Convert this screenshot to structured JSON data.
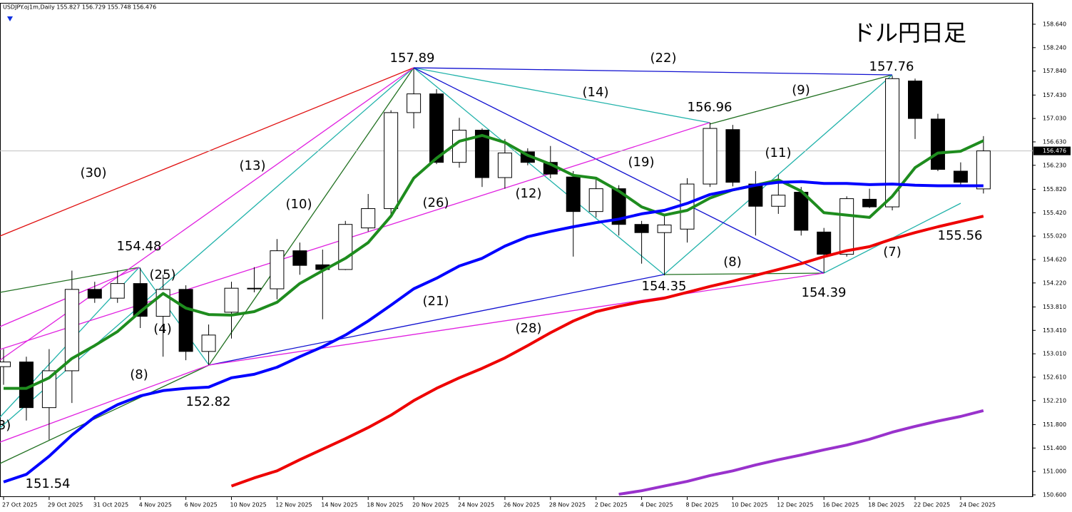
{
  "chart_data": {
    "type": "candlestick",
    "header": "USDJPY.oj1m,Daily 155.827 156.729 155.748 156.476",
    "title": "ドル円日足",
    "categories": [
      "27 Oct 2025",
      null,
      "29 Oct 2025",
      null,
      "31 Oct 2025",
      null,
      "4 Nov 2025",
      null,
      "6 Nov 2025",
      null,
      "10 Nov 2025",
      null,
      "12 Nov 2025",
      null,
      "14 Nov 2025",
      null,
      "18 Nov 2025",
      null,
      "20 Nov 2025",
      null,
      "24 Nov 2025",
      null,
      "26 Nov 2025",
      null,
      "28 Nov 2025",
      null,
      "2 Dec 2025",
      null,
      "4 Dec 2025",
      null,
      "8 Dec 2025",
      null,
      "10 Dec 2025",
      null,
      "12 Dec 2025",
      null,
      "16 Dec 2025",
      null,
      "18 Dec 2025",
      null,
      "22 Dec 2025",
      null,
      "24 Dec 2025",
      null
    ],
    "open": [
      152.79,
      152.87,
      152.09,
      152.72,
      154.11,
      153.96,
      154.21,
      153.65,
      154.11,
      153.05,
      153.72,
      154.13,
      154.12,
      154.77,
      154.53,
      154.45,
      155.16,
      155.49,
      157.13,
      157.45,
      156.28,
      156.83,
      156.02,
      156.46,
      156.28,
      156.03,
      155.44,
      155.83,
      155.22,
      155.08,
      155.14,
      155.91,
      156.84,
      155.91,
      155.53,
      155.77,
      155.09,
      154.71,
      155.65,
      155.52,
      157.67,
      157.02,
      156.13,
      155.827
    ],
    "high": [
      153.09,
      152.96,
      153.09,
      154.43,
      154.24,
      154.43,
      154.48,
      154.36,
      154.18,
      153.51,
      154.24,
      154.49,
      154.97,
      154.91,
      154.79,
      155.28,
      155.74,
      157.17,
      157.89,
      157.53,
      157.04,
      156.86,
      156.68,
      156.52,
      156.56,
      156.13,
      156.01,
      155.89,
      155.28,
      155.4,
      156.01,
      156.96,
      156.92,
      156.13,
      156.07,
      155.86,
      155.16,
      155.7,
      155.83,
      157.76,
      157.71,
      157.11,
      156.28,
      156.729
    ],
    "low": [
      152.48,
      151.87,
      151.54,
      152.17,
      153.88,
      153.88,
      153.45,
      152.96,
      152.9,
      152.82,
      153.27,
      154.06,
      153.94,
      154.36,
      153.6,
      154.44,
      155.1,
      155.4,
      156.86,
      156.25,
      156.19,
      155.86,
      155.83,
      156.23,
      156.01,
      154.67,
      155.34,
      155.03,
      154.55,
      154.35,
      154.91,
      155.86,
      155.87,
      155.03,
      155.4,
      155.03,
      154.39,
      154.67,
      155.5,
      155.46,
      156.68,
      156.13,
      155.86,
      155.748
    ],
    "close": [
      152.87,
      152.09,
      152.72,
      154.11,
      153.96,
      154.21,
      153.65,
      154.11,
      153.05,
      153.33,
      154.13,
      154.12,
      154.77,
      154.52,
      154.45,
      155.22,
      155.49,
      157.13,
      157.45,
      156.28,
      156.83,
      156.02,
      156.44,
      156.28,
      156.08,
      155.44,
      155.83,
      155.22,
      155.08,
      155.21,
      155.91,
      156.86,
      155.94,
      155.53,
      155.72,
      155.12,
      154.71,
      155.66,
      155.52,
      157.71,
      157.03,
      156.16,
      155.94,
      156.476
    ],
    "up_color": "#ffffff",
    "down_color": "#000000",
    "series": [
      {
        "color": "#1e8c1e",
        "values": [
          152.42,
          152.42,
          152.6,
          152.93,
          153.15,
          153.39,
          153.73,
          154.04,
          153.79,
          153.68,
          153.67,
          153.73,
          153.89,
          154.21,
          154.43,
          154.64,
          154.91,
          155.36,
          156.01,
          156.35,
          156.64,
          156.74,
          156.62,
          156.4,
          156.25,
          156.06,
          156.01,
          155.79,
          155.52,
          155.38,
          155.46,
          155.67,
          155.81,
          155.89,
          155.98,
          155.79,
          155.42,
          155.38,
          155.34,
          155.7,
          156.19,
          156.44,
          156.47,
          156.65
        ]
      },
      {
        "color": "#0000ff",
        "values": [
          150.82,
          150.95,
          151.26,
          151.62,
          151.93,
          152.14,
          152.29,
          152.38,
          152.42,
          152.44,
          152.6,
          152.66,
          152.78,
          152.96,
          153.13,
          153.33,
          153.57,
          153.84,
          154.12,
          154.3,
          154.51,
          154.64,
          154.85,
          155.01,
          155.1,
          155.18,
          155.25,
          155.31,
          155.4,
          155.46,
          155.58,
          155.73,
          155.81,
          155.89,
          155.94,
          155.95,
          155.92,
          155.92,
          155.9,
          155.91,
          155.89,
          155.88,
          155.88,
          155.88
        ]
      },
      {
        "color": "#ee0000",
        "values": [
          null,
          null,
          null,
          null,
          null,
          null,
          null,
          null,
          null,
          null,
          150.75,
          150.89,
          151.01,
          151.2,
          151.38,
          151.56,
          151.75,
          151.96,
          152.21,
          152.42,
          152.6,
          152.76,
          152.94,
          153.15,
          153.37,
          153.57,
          153.73,
          153.82,
          153.9,
          153.96,
          154.06,
          154.16,
          154.25,
          154.35,
          154.45,
          154.55,
          154.67,
          154.77,
          154.84,
          154.97,
          155.08,
          155.18,
          155.27,
          155.36
        ]
      },
      {
        "color": "#9932cc",
        "values": [
          null,
          null,
          null,
          null,
          null,
          null,
          null,
          null,
          null,
          null,
          null,
          null,
          null,
          null,
          null,
          null,
          null,
          null,
          null,
          null,
          null,
          null,
          null,
          null,
          null,
          null,
          null,
          150.61,
          150.67,
          150.75,
          150.83,
          150.93,
          151.01,
          151.11,
          151.2,
          151.28,
          151.37,
          151.45,
          151.55,
          151.67,
          151.77,
          151.86,
          151.94,
          152.04
        ]
      }
    ],
    "current_price": 156.476,
    "ylim": [
      150.563,
      159.005
    ],
    "yticks": [
      {
        "value": 158.64,
        "label": "158.640"
      },
      {
        "value": 158.24,
        "label": "158.240"
      },
      {
        "value": 157.84,
        "label": "157.840"
      },
      {
        "value": 157.43,
        "label": "157.430"
      },
      {
        "value": 157.03,
        "label": "157.030"
      },
      {
        "value": 156.63,
        "label": "156.630"
      },
      {
        "value": 156.23,
        "label": "156.230"
      },
      {
        "value": 155.82,
        "label": "155.820"
      },
      {
        "value": 155.42,
        "label": "155.420"
      },
      {
        "value": 155.02,
        "label": "155.020"
      },
      {
        "value": 154.62,
        "label": "154.620"
      },
      {
        "value": 154.22,
        "label": "154.220"
      },
      {
        "value": 153.81,
        "label": "153.810"
      },
      {
        "value": 153.41,
        "label": "153.410"
      },
      {
        "value": 153.01,
        "label": "153.010"
      },
      {
        "value": 152.61,
        "label": "152.610"
      },
      {
        "value": 152.21,
        "label": "152.210"
      },
      {
        "value": 151.8,
        "label": "151.800"
      },
      {
        "value": 151.4,
        "label": "151.400"
      },
      {
        "value": 151.0,
        "label": "151.000"
      },
      {
        "value": 150.6,
        "label": "150.600"
      }
    ],
    "annotations": [
      "157.89",
      "157.76",
      "156.96",
      "154.48",
      "152.82",
      "154.35",
      "154.39",
      "155.56",
      "151.54",
      "(30)",
      "(13)",
      "(10)",
      "(25)",
      "(4)",
      "(8)",
      "3)",
      "(26)",
      "(21)",
      "(28)",
      "(14)",
      "(22)",
      "(12)",
      "(19)",
      "(9)",
      "(11)",
      "(8)",
      "(7)"
    ]
  }
}
